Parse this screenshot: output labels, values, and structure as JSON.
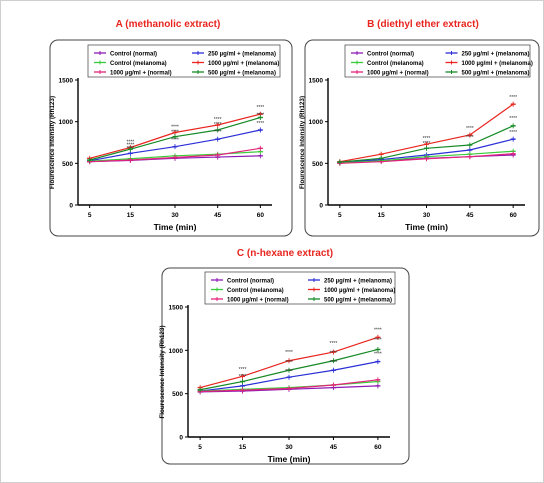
{
  "panels": [
    {
      "title": "A (methanolic extract)"
    },
    {
      "title": "B (diethyl ether extract)"
    },
    {
      "title": "C (n-hexane extract)"
    }
  ],
  "colors": {
    "title": "#e8251f",
    "Control (normal)": "#8e1ab5",
    "250 µg/ml + (melanoma)": "#2b2fd6",
    "Control (melanoma)": "#3acb3a",
    "1000 µg/ml + (melanoma)": "#e8251f",
    "1000 µg/ml + (normal)": "#e3247a",
    "500 µg/ml + (melanoma)": "#168a26"
  },
  "chart_data": [
    {
      "type": "line",
      "title": "A (methanolic extract)",
      "xlabel": "Time (min)",
      "ylabel": "Flourescence Intensity (Rh123)",
      "x": [
        5,
        15,
        30,
        45,
        60
      ],
      "yticks": [
        0,
        500,
        1000,
        1500
      ],
      "ylim": [
        0,
        1500
      ],
      "legend_position": "top",
      "series": [
        {
          "name": "Control (normal)",
          "values": [
            520,
            535,
            560,
            575,
            590
          ]
        },
        {
          "name": "250 µg/ml + (melanoma)",
          "values": [
            530,
            620,
            700,
            790,
            900
          ]
        },
        {
          "name": "Control (melanoma)",
          "values": [
            525,
            555,
            590,
            610,
            640
          ]
        },
        {
          "name": "1000 µg/ml + (melanoma)",
          "values": [
            560,
            690,
            870,
            960,
            1090
          ]
        },
        {
          "name": "1000 µg/ml + (normal)",
          "values": [
            520,
            540,
            570,
            600,
            680
          ]
        },
        {
          "name": "500 µg/ml + (melanoma)",
          "values": [
            540,
            670,
            820,
            900,
            1050
          ]
        }
      ],
      "annotations": [
        {
          "x": 15,
          "y": 740,
          "text": "****"
        },
        {
          "x": 15,
          "y": 700,
          "text": "****"
        },
        {
          "x": 15,
          "y": 660,
          "text": "****"
        },
        {
          "x": 30,
          "y": 920,
          "text": "****"
        },
        {
          "x": 30,
          "y": 860,
          "text": "****"
        },
        {
          "x": 30,
          "y": 760,
          "text": "****"
        },
        {
          "x": 45,
          "y": 1010,
          "text": "****"
        },
        {
          "x": 45,
          "y": 950,
          "text": "****"
        },
        {
          "x": 45,
          "y": 860,
          "text": "****"
        },
        {
          "x": 60,
          "y": 1150,
          "text": "****"
        },
        {
          "x": 60,
          "y": 1060,
          "text": "****"
        },
        {
          "x": 60,
          "y": 960,
          "text": "****"
        }
      ]
    },
    {
      "type": "line",
      "title": "B (diethyl ether extract)",
      "xlabel": "Time (min)",
      "ylabel": "Flourescence Intensity (Rh123)",
      "x": [
        5,
        15,
        30,
        45,
        60
      ],
      "yticks": [
        0,
        500,
        1000,
        1500
      ],
      "ylim": [
        0,
        1500
      ],
      "legend_position": "top",
      "series": [
        {
          "name": "Control (normal)",
          "values": [
            505,
            530,
            560,
            580,
            600
          ]
        },
        {
          "name": "250 µg/ml + (melanoma)",
          "values": [
            510,
            545,
            600,
            660,
            790
          ]
        },
        {
          "name": "Control (melanoma)",
          "values": [
            505,
            530,
            580,
            610,
            645
          ]
        },
        {
          "name": "1000 µg/ml + (melanoma)",
          "values": [
            520,
            610,
            730,
            840,
            1210
          ]
        },
        {
          "name": "1000 µg/ml + (normal)",
          "values": [
            500,
            520,
            555,
            580,
            615
          ]
        },
        {
          "name": "500 µg/ml + (melanoma)",
          "values": [
            515,
            560,
            680,
            720,
            950
          ]
        }
      ],
      "annotations": [
        {
          "x": 30,
          "y": 780,
          "text": "****"
        },
        {
          "x": 30,
          "y": 720,
          "text": "****"
        },
        {
          "x": 45,
          "y": 900,
          "text": "****"
        },
        {
          "x": 45,
          "y": 790,
          "text": "****"
        },
        {
          "x": 60,
          "y": 1270,
          "text": "****"
        },
        {
          "x": 60,
          "y": 1020,
          "text": "****"
        },
        {
          "x": 60,
          "y": 850,
          "text": "****"
        }
      ]
    },
    {
      "type": "line",
      "title": "C (n-hexane extract)",
      "xlabel": "Time (min)",
      "ylabel": "Flourescence Intensity (Rh123)",
      "x": [
        5,
        15,
        30,
        45,
        60
      ],
      "yticks": [
        0,
        500,
        1000,
        1500
      ],
      "ylim": [
        0,
        1500
      ],
      "legend_position": "top",
      "series": [
        {
          "name": "Control (normal)",
          "values": [
            520,
            530,
            550,
            570,
            590
          ]
        },
        {
          "name": "250 µg/ml + (melanoma)",
          "values": [
            530,
            590,
            690,
            770,
            870
          ]
        },
        {
          "name": "Control (melanoma)",
          "values": [
            530,
            550,
            570,
            600,
            640
          ]
        },
        {
          "name": "1000 µg/ml + (melanoma)",
          "values": [
            570,
            700,
            880,
            980,
            1150
          ]
        },
        {
          "name": "1000 µg/ml + (normal)",
          "values": [
            525,
            540,
            560,
            600,
            660
          ]
        },
        {
          "name": "500 µg/ml + (melanoma)",
          "values": [
            545,
            640,
            770,
            880,
            1010
          ]
        }
      ],
      "annotations": [
        {
          "x": 15,
          "y": 760,
          "text": "****"
        },
        {
          "x": 15,
          "y": 680,
          "text": "****"
        },
        {
          "x": 30,
          "y": 960,
          "text": "****"
        },
        {
          "x": 30,
          "y": 840,
          "text": "****"
        },
        {
          "x": 30,
          "y": 740,
          "text": "****"
        },
        {
          "x": 45,
          "y": 1060,
          "text": "****"
        },
        {
          "x": 45,
          "y": 950,
          "text": "****"
        },
        {
          "x": 45,
          "y": 840,
          "text": "****"
        },
        {
          "x": 60,
          "y": 1220,
          "text": "****"
        },
        {
          "x": 60,
          "y": 1100,
          "text": "****"
        },
        {
          "x": 60,
          "y": 940,
          "text": "****"
        }
      ]
    }
  ]
}
